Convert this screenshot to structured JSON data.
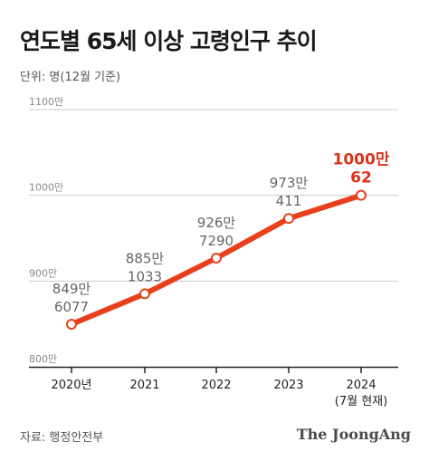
{
  "header": {
    "title": "연도별 65세 이상 고령인구 추이",
    "unit_note": "단위: 명(12월 기준)"
  },
  "footer": {
    "source": "자료: 행정안전부",
    "brand": "The JoongAng"
  },
  "colors": {
    "line": "#e8401c",
    "highlight_label": "#d9341a",
    "label": "#666666",
    "grid": "#cccccc",
    "axis": "#222222"
  },
  "chart_data": {
    "type": "line",
    "title": "연도별 65세 이상 고령인구 추이",
    "ylabel": "단위: 명(12월 기준)",
    "ylim": [
      8000000,
      11000000
    ],
    "yticks": [
      {
        "value": 11000000,
        "label": "1100만"
      },
      {
        "value": 10000000,
        "label": "1000만"
      },
      {
        "value": 9000000,
        "label": "900만"
      },
      {
        "value": 8000000,
        "label": "800만"
      }
    ],
    "categories": [
      "2020년",
      "2021",
      "2022",
      "2023",
      "2024"
    ],
    "category_sublabels": [
      "",
      "",
      "",
      "",
      "(7월 현재)"
    ],
    "series": [
      {
        "values": [
          8496077,
          8851033,
          9267290,
          9730411,
          10000062
        ],
        "labels": [
          [
            "849만",
            "6077"
          ],
          [
            "885만",
            "1033"
          ],
          [
            "926만",
            "7290"
          ],
          [
            "973만",
            "411"
          ],
          [
            "1000만",
            "62"
          ]
        ]
      }
    ],
    "grid": true,
    "legend": "none"
  }
}
